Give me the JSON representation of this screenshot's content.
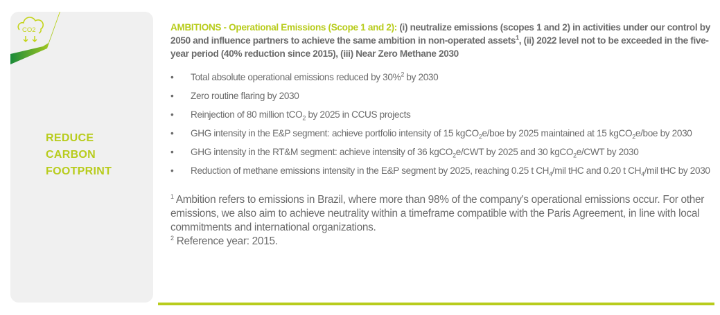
{
  "sidebar": {
    "title_lines": [
      "REDUCE",
      "CARBON",
      "FOOTPRINT"
    ],
    "icon": "co2-cloud-down-icon",
    "icon_text": "CO2"
  },
  "ambitions": {
    "label": "AMBITIONS - Operational Emissions (Scope 1 and 2):",
    "text_a": " (i) neutralize emissions (scopes 1 and 2) in activities under our control by 2050 and influence partners to achieve the same ambition in non-operated assets",
    "sup": "1",
    "text_b": ", (ii) 2022 level not to be exceeded in the five-year period (40% reduction since 2015), (iii) Near Zero Methane 2030"
  },
  "bullets": [
    {
      "parts": [
        "Total absolute operational emissions reduced by 30%",
        "2",
        " by 2030"
      ]
    },
    {
      "parts": [
        "Zero routine flaring by 2030"
      ]
    },
    {
      "parts": [
        "Reinjection of 80 million tCO",
        "2",
        " by 2025 in CCUS projects"
      ]
    },
    {
      "parts": [
        "GHG intensity in the E&P segment: achieve portfolio intensity of 15 kgCO",
        "2",
        "e/boe by 2025 maintained at 15 kgCO",
        "2",
        "e/boe by 2030"
      ]
    },
    {
      "parts": [
        "GHG intensity in the RT&M segment: achieve intensity of 36 kgCO",
        "2",
        "e/CWT by 2025 and 30 kgCO",
        "2",
        "e/CWT by 2030"
      ]
    },
    {
      "parts": [
        "Reduction of methane emissions intensity in the E&P segment by 2025, reaching 0.25 t CH",
        "4",
        "/mil tHC and 0.20 t CH",
        "4",
        "/mil tHC by 2030"
      ]
    }
  ],
  "footnotes": [
    {
      "mark": "1",
      "text": " Ambition refers to emissions in Brazil, where more than 98% of the company's operational emissions occur. For other emissions, we also aim to achieve neutrality within a timeframe compatible with the Paris Agreement, in line with local commitments and international organizations."
    },
    {
      "mark": "2",
      "text": " Reference year: 2015."
    }
  ],
  "colors": {
    "accent": "#b8cc1c",
    "dark_green": "#1a8a3a",
    "text": "#6b6b6b",
    "panel": "#f0f0f0"
  }
}
